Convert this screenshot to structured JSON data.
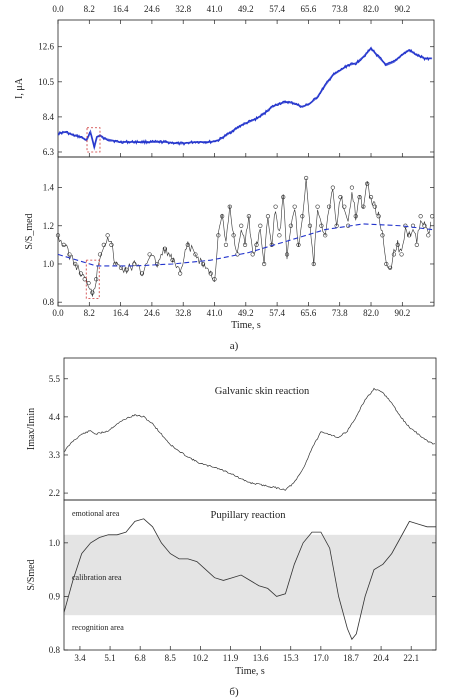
{
  "chart_data": [
    {
      "type": "line",
      "name": "panel-a-current",
      "ylabel": "I, μA",
      "xlim": [
        0,
        98.5
      ],
      "ylim": [
        6.0,
        14.2
      ],
      "x_ticks": [
        0.0,
        8.2,
        16.4,
        24.6,
        32.8,
        41.0,
        49.2,
        57.4,
        65.6,
        73.8,
        82.0,
        90.2
      ],
      "x_tick_labels": [
        "0.0",
        "8.2",
        "16.4",
        "24.6",
        "32.8",
        "41.0",
        "49.2",
        "57.4",
        "65.6",
        "73.8",
        "82.0",
        "90.2"
      ],
      "y_ticks": [
        6.3,
        8.4,
        10.5,
        12.6
      ],
      "y_tick_labels": [
        "6.3",
        "8.4",
        "10.5",
        "12.6"
      ],
      "series": [
        {
          "x": [
            0,
            2,
            4,
            6,
            7.5,
            8.5,
            9.5,
            10.2,
            11,
            12,
            14,
            16,
            20,
            24,
            28,
            32,
            36,
            40,
            42,
            44,
            46,
            48,
            50,
            52,
            54,
            56,
            58,
            60,
            62,
            64,
            66,
            68,
            70,
            72,
            74,
            76,
            78,
            80,
            82,
            84,
            86,
            88,
            90,
            92,
            94,
            96,
            98
          ],
          "y": [
            7.4,
            7.5,
            7.3,
            7.2,
            7.0,
            7.5,
            6.6,
            7.2,
            7.3,
            7.1,
            7.0,
            6.9,
            6.9,
            6.9,
            6.9,
            6.8,
            6.9,
            6.9,
            7.0,
            7.3,
            7.6,
            7.9,
            8.1,
            8.3,
            8.6,
            9.0,
            9.2,
            9.3,
            9.2,
            9.0,
            9.2,
            9.6,
            10.3,
            10.9,
            11.2,
            11.5,
            11.6,
            12.0,
            12.5,
            12.0,
            11.5,
            11.7,
            12.1,
            12.4,
            12.1,
            11.9,
            11.9
          ]
        }
      ]
    },
    {
      "type": "scatter",
      "name": "panel-a-ratio",
      "xlabel": "Time, s",
      "ylabel": "S/S_med",
      "xlim": [
        0,
        98.5
      ],
      "ylim": [
        0.78,
        1.56
      ],
      "x_ticks": [
        0.0,
        8.2,
        16.4,
        24.6,
        32.8,
        41.0,
        49.2,
        57.4,
        65.6,
        73.8,
        82.0,
        90.2
      ],
      "x_tick_labels": [
        "0.0",
        "8.2",
        "16.4",
        "24.6",
        "32.8",
        "41.0",
        "49.2",
        "57.4",
        "65.6",
        "73.8",
        "82.0",
        "90.2"
      ],
      "y_ticks": [
        0.8,
        1.0,
        1.2,
        1.4
      ],
      "y_tick_labels": [
        "0.8",
        "1.0",
        "1.2",
        "1.4"
      ],
      "series": [
        {
          "x": [
            0,
            1.5,
            3,
            4.5,
            6,
            7,
            8,
            9,
            10,
            11,
            12,
            13,
            14,
            15,
            16.5,
            18,
            20,
            22,
            24,
            26,
            28,
            30,
            32,
            34,
            36,
            38,
            40,
            41,
            42,
            43,
            44,
            45,
            46,
            47,
            48,
            49,
            50,
            51,
            52,
            53,
            54,
            55,
            56,
            57,
            58,
            59,
            60,
            61,
            62,
            63,
            64,
            65,
            66,
            67,
            68,
            69,
            70,
            71,
            72,
            73,
            74,
            75,
            76,
            77,
            78,
            79,
            80,
            81,
            82,
            83,
            84,
            85,
            86,
            87,
            88,
            89,
            90,
            91,
            92,
            93,
            94,
            95,
            96,
            97,
            98
          ],
          "y": [
            1.15,
            1.1,
            1.05,
            1.0,
            0.95,
            0.92,
            0.9,
            0.85,
            0.92,
            1.05,
            1.1,
            1.15,
            1.1,
            1.0,
            0.98,
            0.97,
            1.0,
            0.95,
            1.05,
            1.0,
            1.08,
            1.02,
            0.95,
            1.1,
            1.05,
            1.0,
            0.95,
            0.92,
            1.15,
            1.25,
            1.1,
            1.3,
            1.15,
            1.05,
            1.2,
            1.1,
            1.25,
            1.05,
            1.1,
            1.2,
            1.0,
            1.25,
            1.1,
            1.3,
            1.15,
            1.35,
            1.05,
            1.2,
            1.3,
            1.1,
            1.25,
            1.45,
            1.2,
            1.0,
            1.3,
            1.2,
            1.15,
            1.3,
            1.4,
            1.2,
            1.35,
            1.3,
            1.2,
            1.4,
            1.25,
            1.35,
            1.3,
            1.42,
            1.35,
            1.3,
            1.25,
            1.15,
            1.0,
            0.98,
            1.05,
            1.1,
            1.05,
            1.2,
            1.15,
            1.2,
            1.1,
            1.25,
            1.2,
            1.15,
            1.25
          ]
        },
        {
          "x": [
            0,
            10,
            20,
            30,
            40,
            50,
            60,
            70,
            80,
            90,
            98
          ],
          "y": [
            1.05,
            0.99,
            0.99,
            1.0,
            1.02,
            1.06,
            1.12,
            1.18,
            1.21,
            1.2,
            1.18
          ]
        }
      ]
    },
    {
      "type": "line",
      "name": "panel-b-gsr",
      "title": "Galvanic skin reaction",
      "ylabel": "Imax/Imin",
      "xlim": [
        2.5,
        23.5
      ],
      "ylim": [
        2.0,
        6.1
      ],
      "y_ticks": [
        2.2,
        3.3,
        4.4,
        5.5
      ],
      "y_tick_labels": [
        "2.2",
        "3.3",
        "4.4",
        "5.5"
      ],
      "series": [
        {
          "x": [
            2.5,
            3.0,
            3.5,
            4.0,
            4.3,
            5.0,
            5.5,
            6.0,
            6.5,
            7.0,
            7.5,
            8.0,
            8.5,
            9.0,
            9.5,
            10.0,
            10.5,
            11.0,
            11.5,
            12.0,
            12.5,
            13.0,
            13.5,
            14.0,
            14.5,
            15.0,
            15.5,
            16.0,
            16.5,
            17.0,
            17.5,
            18.0,
            18.5,
            19.0,
            19.5,
            20.0,
            20.5,
            21.0,
            21.5,
            22.0,
            22.5,
            23.0,
            23.5
          ],
          "y": [
            3.4,
            3.7,
            3.9,
            4.0,
            3.9,
            4.0,
            4.2,
            4.35,
            4.45,
            4.4,
            4.2,
            3.9,
            3.6,
            3.4,
            3.25,
            3.1,
            3.0,
            2.95,
            2.85,
            2.75,
            2.6,
            2.5,
            2.45,
            2.4,
            2.35,
            2.3,
            2.5,
            2.9,
            3.5,
            3.95,
            3.9,
            3.8,
            4.0,
            4.4,
            4.9,
            5.2,
            5.1,
            4.8,
            4.4,
            4.1,
            3.9,
            3.7,
            3.6
          ]
        }
      ]
    },
    {
      "type": "line",
      "name": "panel-b-pupil",
      "title": "Pupillary reaction",
      "xlabel": "Time, s",
      "ylabel": "S/Smed",
      "xlim": [
        2.5,
        23.5
      ],
      "ylim": [
        0.8,
        1.08
      ],
      "x_ticks": [
        3.4,
        5.1,
        6.8,
        8.5,
        10.2,
        11.9,
        13.6,
        15.3,
        17.0,
        18.7,
        20.4,
        22.1
      ],
      "x_tick_labels": [
        "3.4",
        "5.1",
        "6.8",
        "8.5",
        "10.2",
        "11.9",
        "13.6",
        "15.3",
        "17.0",
        "18.7",
        "20.4",
        "22.1"
      ],
      "y_ticks": [
        0.8,
        0.9,
        1.0
      ],
      "y_tick_labels": [
        "0.8",
        "0.9",
        "1.0"
      ],
      "band": [
        0.865,
        1.015
      ],
      "band_color": "#e4e4e4",
      "annotations": [
        "emotional area",
        "calibration area",
        "recognition area"
      ],
      "series": [
        {
          "x": [
            2.5,
            3.0,
            3.5,
            4.0,
            4.5,
            5.0,
            5.5,
            6.0,
            6.5,
            7.0,
            7.5,
            8.0,
            8.5,
            9.0,
            9.5,
            10.0,
            10.5,
            11.0,
            11.5,
            12.0,
            12.5,
            13.0,
            13.5,
            14.0,
            14.5,
            15.0,
            15.5,
            16.0,
            16.5,
            17.0,
            17.5,
            18.0,
            18.5,
            18.75,
            19.0,
            19.5,
            20.0,
            20.5,
            21.0,
            21.5,
            22.0,
            22.5,
            23.0,
            23.5
          ],
          "y": [
            0.87,
            0.93,
            0.98,
            1.0,
            1.01,
            1.015,
            1.015,
            1.02,
            1.04,
            1.045,
            1.03,
            1.0,
            0.98,
            0.97,
            0.97,
            0.965,
            0.95,
            0.935,
            0.93,
            0.935,
            0.94,
            0.93,
            0.92,
            0.915,
            0.9,
            0.905,
            0.96,
            1.0,
            1.02,
            1.02,
            0.99,
            0.9,
            0.84,
            0.82,
            0.83,
            0.9,
            0.95,
            0.96,
            0.98,
            1.01,
            1.04,
            1.035,
            1.03,
            1.03
          ]
        }
      ]
    }
  ],
  "captions": {
    "a": "a)",
    "b": "б)"
  },
  "colors": {
    "current": "#2233cc",
    "trend": "#2233cc",
    "marker_box": "#cc3333",
    "ink": "#222222"
  }
}
